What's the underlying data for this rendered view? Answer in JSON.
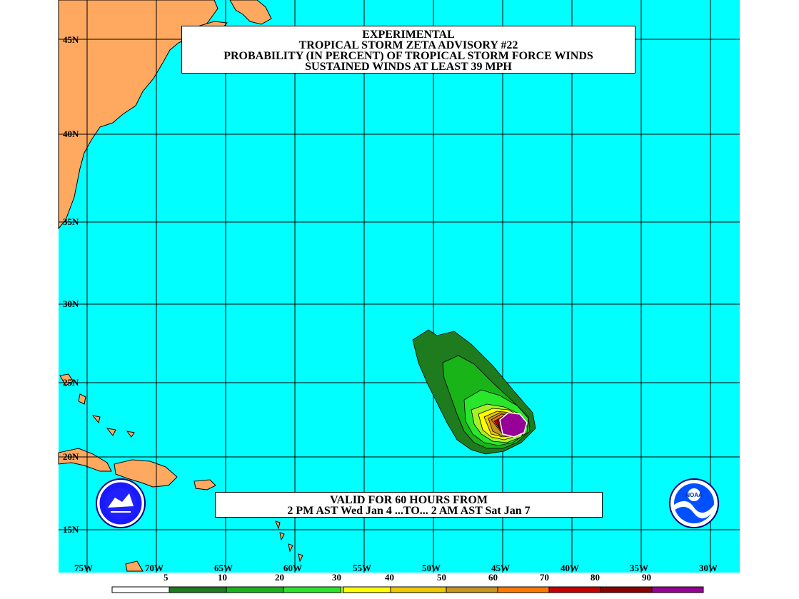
{
  "title": {
    "line1": "EXPERIMENTAL",
    "line2": "TROPICAL STORM ZETA ADVISORY #22",
    "line3": "PROBABILITY (IN PERCENT) OF TROPICAL STORM FORCE WINDS",
    "line4": "SUSTAINED WINDS AT LEAST 39 MPH"
  },
  "valid": {
    "line1": "VALID FOR 60 HOURS FROM",
    "line2": "2 PM AST Wed Jan 4 ...TO... 2 AM AST Sat Jan 7"
  },
  "latitude_labels": [
    "45N",
    "40N",
    "35N",
    "30N",
    "25N",
    "20N",
    "15N"
  ],
  "longitude_labels": [
    "75W",
    "70W",
    "65W",
    "60W",
    "55W",
    "50W",
    "45W",
    "40W",
    "35W",
    "30W"
  ],
  "legend": {
    "thresholds": [
      "5",
      "10",
      "20",
      "30",
      "40",
      "50",
      "60",
      "70",
      "80",
      "90"
    ],
    "colors": [
      "#ffffff",
      "#1e7b1e",
      "#18b418",
      "#29e62a",
      "#a6f028",
      "#ffff00",
      "#f0c800",
      "#c8961e",
      "#ff7800",
      "#c80000",
      "#8c0000",
      "#960096"
    ]
  },
  "colors": {
    "ocean": "#00ffff",
    "land": "#ffa860",
    "grid": "#000000"
  },
  "logos": {
    "left": "nws-logo-icon",
    "right": "noaa-logo-icon"
  }
}
